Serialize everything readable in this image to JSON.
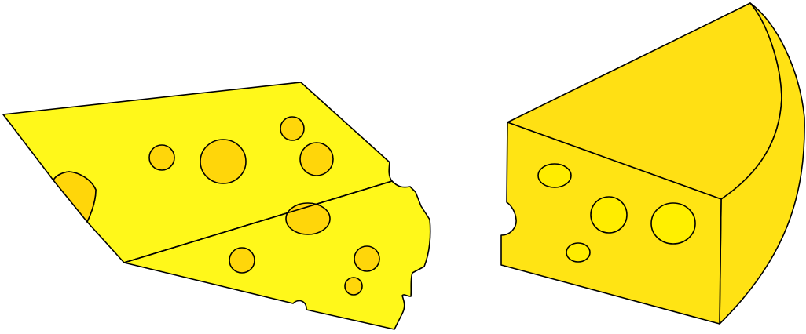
{
  "scene": {
    "subject": "cheese",
    "colors": {
      "background": "#ffffff",
      "outline": "#000000",
      "slice_top": "#fff81a",
      "slice_hole": "#ffd60a",
      "block_front": "#ffe414",
      "block_top": "#ffe014",
      "block_side": "#ffe214",
      "block_hole_front": "#ffed00",
      "block_hole_bright": "#fff000"
    }
  }
}
